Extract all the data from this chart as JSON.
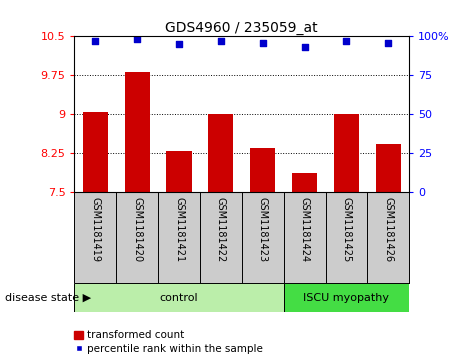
{
  "title": "GDS4960 / 235059_at",
  "samples": [
    "GSM1181419",
    "GSM1181420",
    "GSM1181421",
    "GSM1181422",
    "GSM1181423",
    "GSM1181424",
    "GSM1181425",
    "GSM1181426"
  ],
  "bar_values": [
    9.05,
    9.82,
    8.3,
    9.0,
    8.35,
    7.87,
    9.0,
    8.43
  ],
  "percentile_values": [
    97,
    98,
    95,
    97,
    96,
    93,
    97,
    96
  ],
  "ylim_left": [
    7.5,
    10.5
  ],
  "ylim_right": [
    0,
    100
  ],
  "yticks_left": [
    7.5,
    8.25,
    9.0,
    9.75,
    10.5
  ],
  "yticks_right": [
    0,
    25,
    50,
    75,
    100
  ],
  "ytick_labels_left": [
    "7.5",
    "8.25",
    "9",
    "9.75",
    "10.5"
  ],
  "ytick_labels_right": [
    "0",
    "25",
    "50",
    "75",
    "100%"
  ],
  "bar_color": "#cc0000",
  "dot_color": "#0000cc",
  "n_control": 5,
  "n_disease": 3,
  "control_label": "control",
  "disease_label": "ISCU myopathy",
  "disease_state_label": "disease state",
  "legend_bar_label": "transformed count",
  "legend_dot_label": "percentile rank within the sample",
  "control_color": "#bbeeaa",
  "disease_color": "#44dd44",
  "label_area_color": "#cccccc",
  "baseline": 7.5
}
